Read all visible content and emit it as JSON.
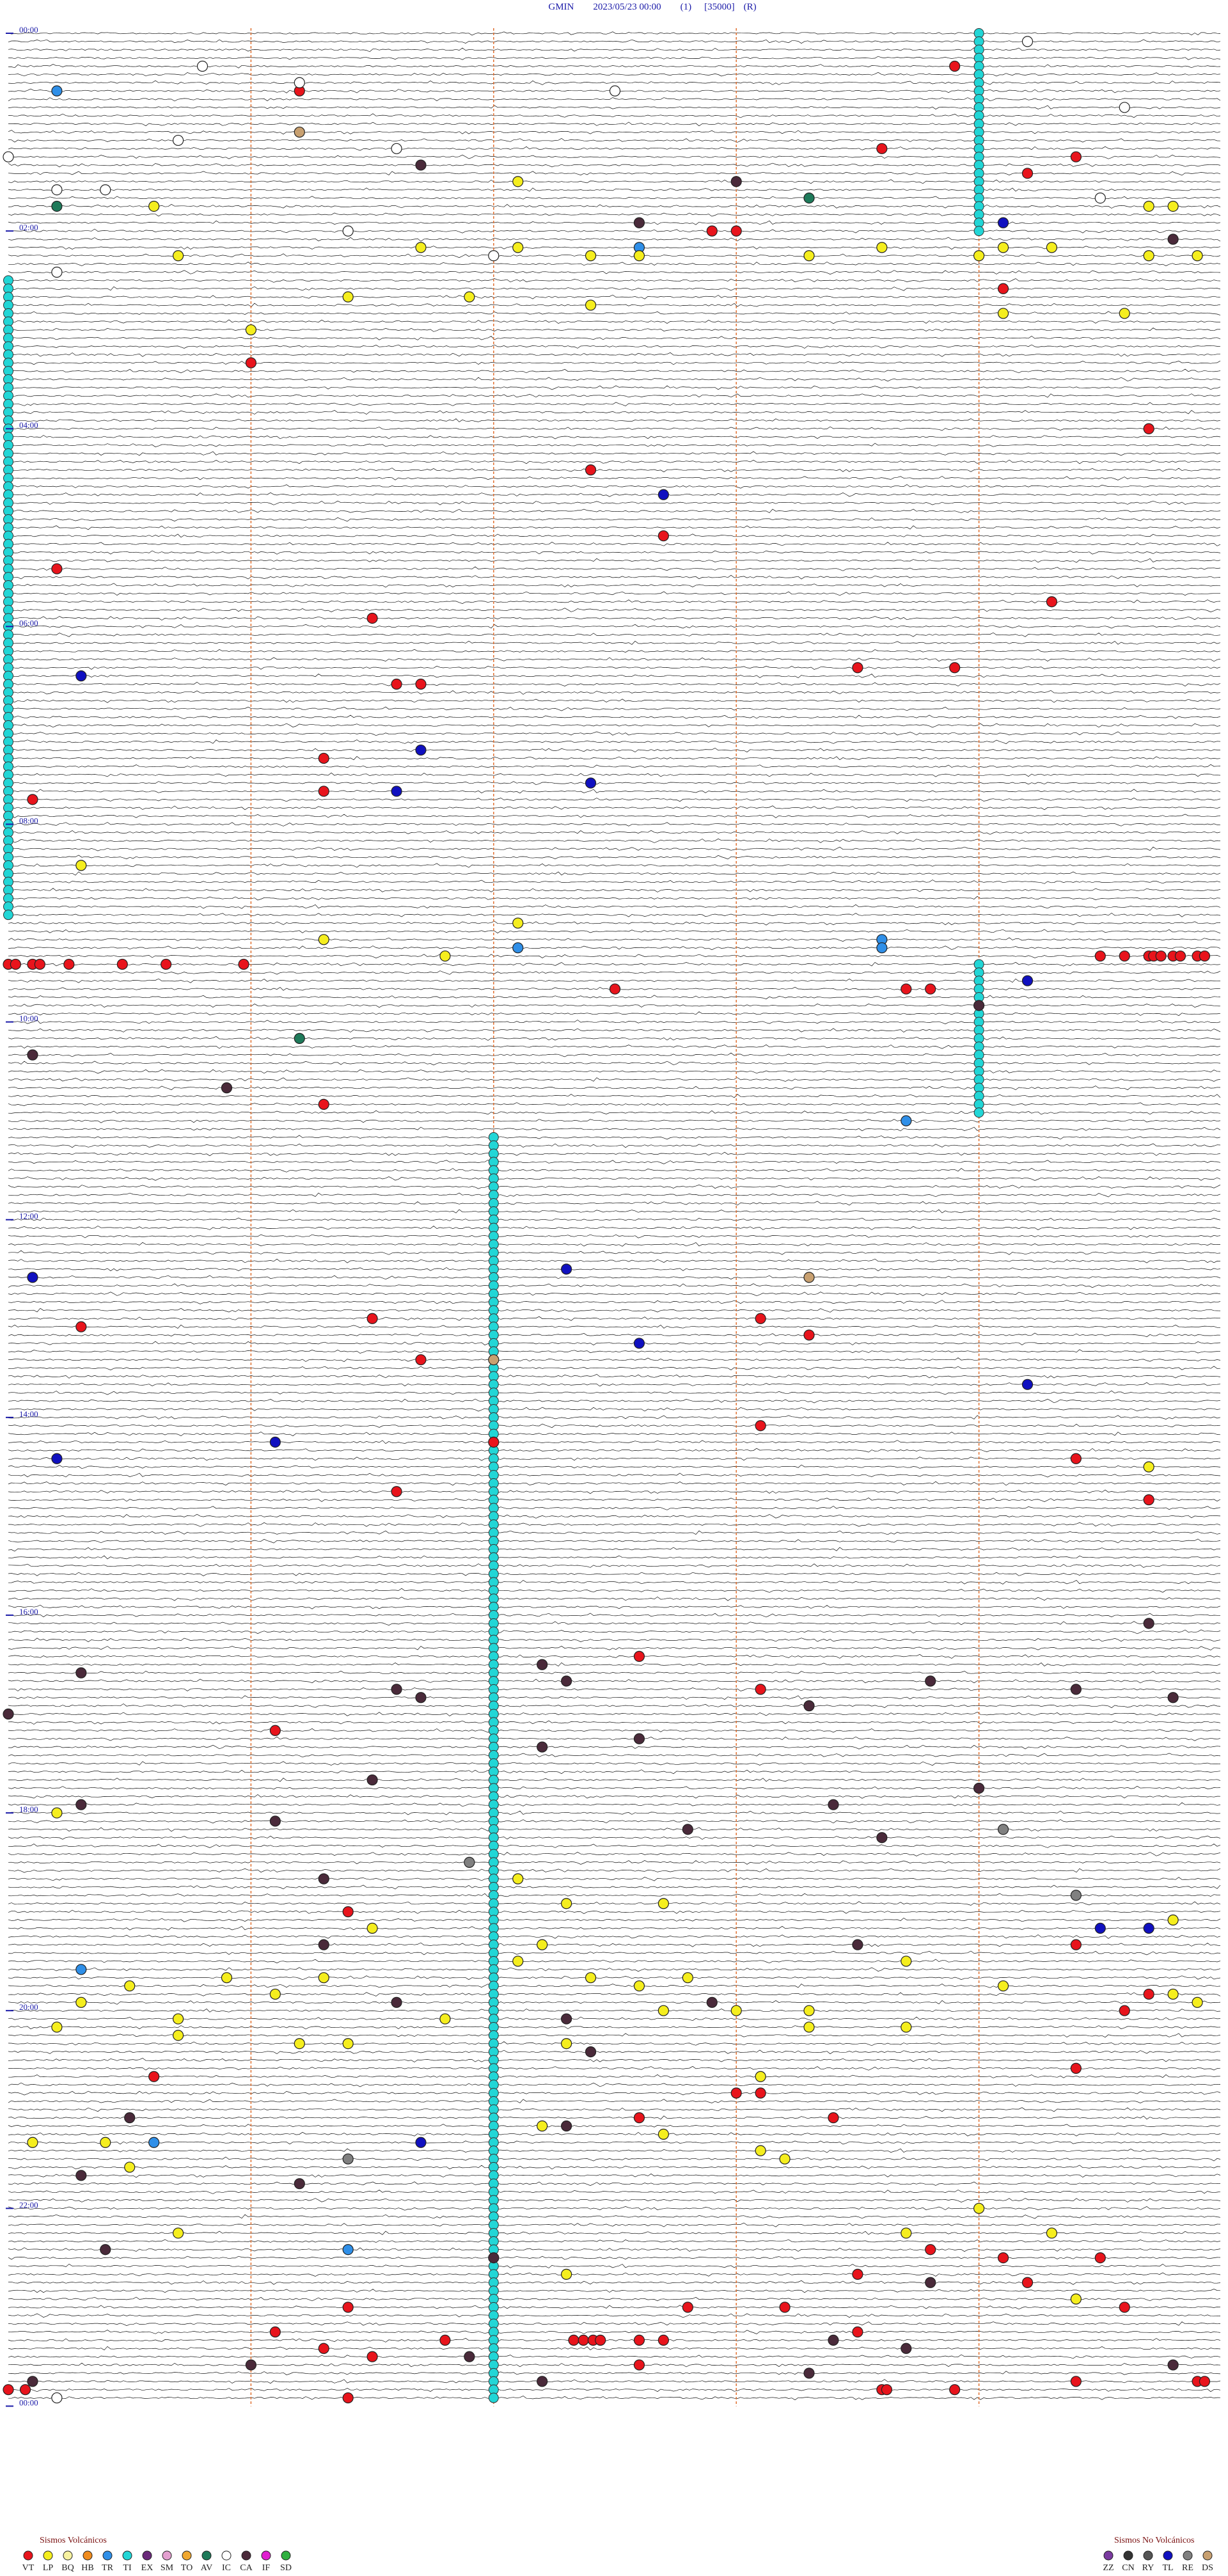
{
  "header": {
    "station": "GMIN",
    "datetime": "2023/05/23 00:00",
    "code1": "(1)",
    "code2": "[35000]",
    "code3": "(R)"
  },
  "helicorder": {
    "minutes_per_line": 5,
    "total_minutes": 1440,
    "division_minutes": [
      1,
      2,
      3,
      4
    ],
    "hour_labels": [
      {
        "minute": 0,
        "label": "00:00"
      },
      {
        "minute": 120,
        "label": "02:00"
      },
      {
        "minute": 240,
        "label": "04:00"
      },
      {
        "minute": 360,
        "label": "06:00"
      },
      {
        "minute": 480,
        "label": "08:00"
      },
      {
        "minute": 600,
        "label": "10:00"
      },
      {
        "minute": 720,
        "label": "12:00"
      },
      {
        "minute": 840,
        "label": "14:00"
      },
      {
        "minute": 960,
        "label": "16:00"
      },
      {
        "minute": 1080,
        "label": "18:00"
      },
      {
        "minute": 1200,
        "label": "20:00"
      },
      {
        "minute": 1320,
        "label": "22:00"
      },
      {
        "minute": 1440,
        "label": "00:00"
      }
    ],
    "tremor": [
      {
        "type": "TI",
        "start": 4.0,
        "end": 124.0
      },
      {
        "type": "TI",
        "start": 150.0,
        "end": 535.0
      },
      {
        "type": "TI",
        "start": 569.0,
        "end": 659.0
      },
      {
        "type": "TI",
        "start": 672.0,
        "end": 1438.0
      }
    ],
    "events": {
      "minute": [
        9.2,
        23.9,
        20.8,
        35.2,
        36.2,
        31.2,
        37.5,
        49.6,
        61.2,
        65.7,
        73.6,
        71.6,
        79.4,
        81.7,
        75.0,
        89.2,
        92.1,
        93.0,
        95.2,
        95.4,
        103.3,
        105.2,
        104.5,
        109.7,
        109.8,
        105.6,
        117.6,
        119.1,
        122.9,
        123.0,
        121.4,
        131.7,
        137.0,
        132.6,
        137.6,
        137.4,
        132.1,
        138.3,
        133.6,
        139.0,
        134.1,
        134.3,
        139.7,
        139.9,
        129.8,
        145.2,
        135.7,
        159.1,
        161.4,
        161.9,
        167.4,
        174.1,
        174.6,
        181.0,
        201.0,
        244.7,
        267.4,
        307.7,
        325.2,
        349.3,
        356.5,
        388.5,
        388.9,
        396.6,
        396.7,
        441.3,
        461.3,
        465.1,
        436.7,
        461.6,
        457.4,
        390.3,
        282.7,
        505.3,
        551.3,
        561.8,
        542.1,
        557.1,
        553.6,
        558.6,
        582.5,
        583.7,
        583.8,
        579.2,
        594.0,
        611.2,
        620.1,
        640.9,
        651.3,
        663.7,
        564.5,
        564.6,
        564.7,
        564.72,
        564.75,
        564.8,
        564.83,
        564.9,
        564.93,
        565.0,
        565.03,
        565.1,
        565.13,
        565.25,
        565.47,
        565.65,
        565.97,
        752.3,
        755.1,
        781.5,
        783.1,
        785.3,
        758.3,
        793.3,
        806.7,
        807.0,
        797.6,
        824.2,
        848.1,
        856.1,
        857.0,
        865.2,
        869.4,
        874.7,
        886.6,
        894.7,
        969.7,
        992.2,
        987.6,
        995.3,
        1002.3,
        1003.8,
        1006.6,
        1009.4,
        1008.1,
        1011.7,
        1014.8,
        1018.3,
        1020.0,
        1031.1,
        1042.2,
        1037.6,
        1061.5,
        1069.0,
        1075.3,
        1080.2,
        1078.4,
        1086.1,
        1092.8,
        1098.6,
        1094.1,
        1111.9,
        1121.3,
        1122.1,
        1134.4,
        1141.4,
        1137.3,
        1137.7,
        1149.8,
        1154.5,
        1154.7,
        1151.5,
        1161.3,
        1162.2,
        1163.5,
        1164.4,
        1172.1,
        1173.7,
        1175.3,
        1180.9,
        1181.3,
        1182.4,
        1182.8,
        1189.1,
        1185.5,
        1191.1,
        1187.6,
        1194.7,
        1194.8,
        1199.9,
        1196.6,
        1197.9,
        1203.0,
        1204.6,
        1195.3,
        1205.7,
        1206.8,
        1207.3,
        1202.7,
        1203.3,
        1213.3,
        1213.7,
        1210.2,
        1215.7,
        1221.2,
        1221.4,
        1222.3,
        1227.4,
        1239.4,
        1240.6,
        1243.1,
        1253.0,
        1253.1,
        1265.5,
        1268.4,
        1267.6,
        1272.2,
        1272.3,
        1277.7,
        1281.7,
        1280.1,
        1280.4,
        1280.6,
        1291.4,
        1288.1,
        1293.2,
        1300.3,
        1295.5,
        1306.2,
        1324.0,
        1335.7,
        1346.4,
        1338.7,
        1348.8,
        1339.3,
        1345.4,
        1354.1,
        1354.5,
        1352.0,
        1362.3,
        1363.5,
        1368.8,
        1369.2,
        1381.4,
        1379.4,
        1384.6,
        1382.8,
        1383.2,
        1396.1,
        1401.8,
        1402.33,
        1402.37,
        1402.41,
        1402.44,
        1402.6,
        1402.7,
        1403.4,
        1398.5,
        1406.3,
        1411.9,
        1408.7,
        1411.5,
        1416.0,
        1417.6,
        1423.3,
        1419.8,
        1429.9,
        1425.1,
        1430.0,
        1430.07,
        1429.4,
        1427.2,
        1433.6,
        1433.62,
        1433.9,
        1436.4,
        1429.93,
        1435.2
      ],
      "type": [
        "IC",
        "VT",
        "IC",
        "TR",
        "VT",
        "IC",
        "IC",
        "IC",
        "DS",
        "IC",
        "VT",
        "IC",
        "VT",
        "CA",
        "IC",
        "VT",
        "LP",
        "CA",
        "IC",
        "IC",
        "AV",
        "AV",
        "IC",
        "LP",
        "LP",
        "LP",
        "CA",
        "TL",
        "VT",
        "VT",
        "IC",
        "LP",
        "IC",
        "TR",
        "LP",
        "LP",
        "LP",
        "LP",
        "LP",
        "LP",
        "LP",
        "LP",
        "LP",
        "LP",
        "CA",
        "IC",
        "LP",
        "VT",
        "LP",
        "LP",
        "LP",
        "LP",
        "LP",
        "LP",
        "VT",
        "VT",
        "VT",
        "VT",
        "VT",
        "VT",
        "VT",
        "VT",
        "VT",
        "VT",
        "VT",
        "VT",
        "VT",
        "VT",
        "TL",
        "TL",
        "TL",
        "TL",
        "TL",
        "LP",
        "LP",
        "LP",
        "LP",
        "TR",
        "TR",
        "TR",
        "VT",
        "VT",
        "VT",
        "TL",
        "CA",
        "AV",
        "CA",
        "CA",
        "VT",
        "TR",
        "VT",
        "VT",
        "VT",
        "VT",
        "VT",
        "VT",
        "VT",
        "VT",
        "VT",
        "VT",
        "VT",
        "VT",
        "VT",
        "VT",
        "VT",
        "VT",
        "VT",
        "TL",
        "TL",
        "VT",
        "VT",
        "VT",
        "DS",
        "VT",
        "VT",
        "DS",
        "TL",
        "TL",
        "VT",
        "TL",
        "VT",
        "TL",
        "VT",
        "LP",
        "VT",
        "VT",
        "CA",
        "CA",
        "VT",
        "CA",
        "CA",
        "CA",
        "CA",
        "CA",
        "VT",
        "CA",
        "CA",
        "CA",
        "CA",
        "VT",
        "CA",
        "CA",
        "CA",
        "CA",
        "CA",
        "LP",
        "CA",
        "CA",
        "CA",
        "CA",
        "RE",
        "RE",
        "CA",
        "LP",
        "RE",
        "VT",
        "LP",
        "LP",
        "LP",
        "TL",
        "TL",
        "LP",
        "CA",
        "LP",
        "CA",
        "VT",
        "LP",
        "LP",
        "TR",
        "LP",
        "LP",
        "LP",
        "LP",
        "LP",
        "LP",
        "LP",
        "LP",
        "VT",
        "LP",
        "LP",
        "CA",
        "CA",
        "LP",
        "VT",
        "LP",
        "LP",
        "LP",
        "CA",
        "LP",
        "LP",
        "LP",
        "LP",
        "LP",
        "LP",
        "LP",
        "LP",
        "LP",
        "CA",
        "VT",
        "VT",
        "LP",
        "VT",
        "VT",
        "CA",
        "VT",
        "VT",
        "LP",
        "CA",
        "LP",
        "TL",
        "LP",
        "LP",
        "TR",
        "RE",
        "LP",
        "LP",
        "CA",
        "LP",
        "CA",
        "LP",
        "LP",
        "TR",
        "LP",
        "VT",
        "LP",
        "CA",
        "VT",
        "VT",
        "CA",
        "LP",
        "VT",
        "CA",
        "VT",
        "VT",
        "LP",
        "VT",
        "VT",
        "VT",
        "VT",
        "VT",
        "VT",
        "VT",
        "VT",
        "VT",
        "VT",
        "VT",
        "CA",
        "VT",
        "VT",
        "CA",
        "CA",
        "VT",
        "CA",
        "VT",
        "CA",
        "CA",
        "VT",
        "CA",
        "VT",
        "VT",
        "VT",
        "CA",
        "VT",
        "VT",
        "VT",
        "VT",
        "VT",
        "IC"
      ]
    }
  },
  "legend": {
    "volcanic": {
      "title": "Sismos Volcánicos",
      "types": [
        {
          "code": "VT",
          "color": "#e8141c"
        },
        {
          "code": "LP",
          "color": "#f5ee1e"
        },
        {
          "code": "BQ",
          "color": "#f7f2a0"
        },
        {
          "code": "HB",
          "color": "#f08c1e"
        },
        {
          "code": "TR",
          "color": "#2f8fe8"
        },
        {
          "code": "TI",
          "color": "#22d6d6"
        },
        {
          "code": "EX",
          "color": "#6a2a7a"
        },
        {
          "code": "SM",
          "color": "#e4a0d0"
        },
        {
          "code": "TO",
          "color": "#f0a830"
        },
        {
          "code": "AV",
          "color": "#1e7a5a"
        },
        {
          "code": "IC",
          "color": "#ffffff"
        },
        {
          "code": "CA",
          "color": "#4a2a3a"
        },
        {
          "code": "IF",
          "color": "#e020d0"
        },
        {
          "code": "SD",
          "color": "#30b040"
        }
      ]
    },
    "non_volcanic": {
      "title": "Sismos No Volcánicos",
      "types": [
        {
          "code": "ZZ",
          "color": "#7a3aa0"
        },
        {
          "code": "CN",
          "color": "#333333"
        },
        {
          "code": "RY",
          "color": "#555555"
        },
        {
          "code": "TL",
          "color": "#1010c0"
        },
        {
          "code": "RE",
          "color": "#808080"
        },
        {
          "code": "DS",
          "color": "#c8a070"
        }
      ]
    }
  }
}
